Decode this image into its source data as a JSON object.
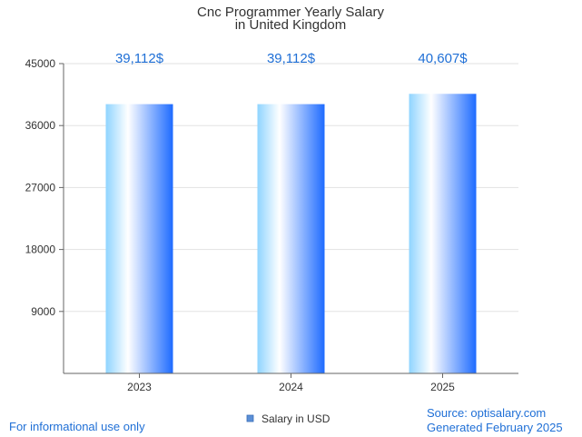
{
  "chart_data": {
    "type": "bar",
    "title_lines": [
      "Cnc Programmer Yearly Salary",
      "in United Kingdom"
    ],
    "categories": [
      "2023",
      "2024",
      "2025"
    ],
    "values": [
      39112,
      39112,
      40607
    ],
    "data_labels": [
      "39,112$",
      "39,112$",
      "40,607$"
    ],
    "ylim": [
      0,
      45000
    ],
    "yticks": [
      9000,
      18000,
      27000,
      36000,
      45000
    ],
    "grid": true,
    "series_name": "Salary in USD",
    "legend_position": "bottom-center"
  },
  "footer": {
    "disclaimer": "For informational use only",
    "source": "Source: optisalary.com",
    "generated": "Generated February 2025"
  },
  "colors": {
    "accent": "#1f6fd6",
    "bar_light": "#8fd4ff",
    "bar_dark": "#1e6bff",
    "legend_swatch": "#5b8fd6"
  }
}
